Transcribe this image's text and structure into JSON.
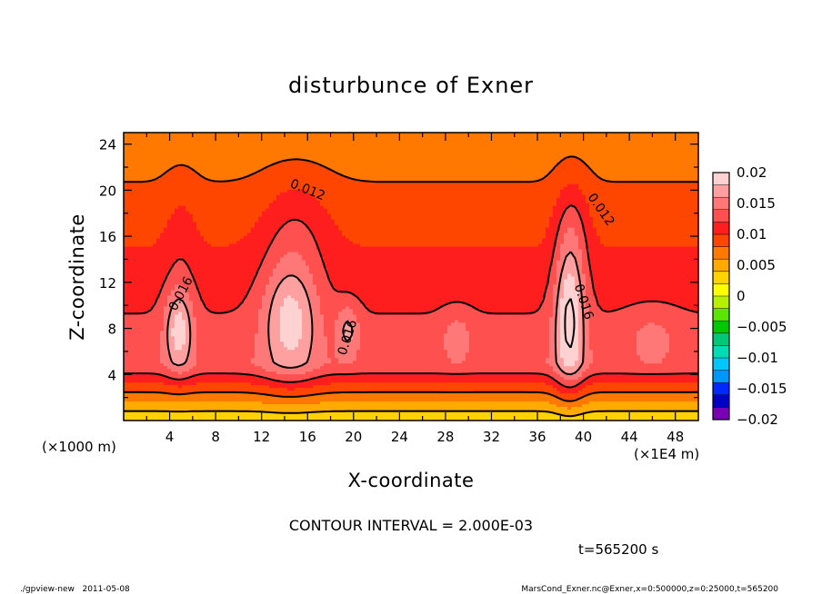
{
  "chart_data": {
    "type": "heatmap",
    "title": "disturbunce of Exner",
    "xlabel": "X-coordinate",
    "ylabel": "Z-coordinate",
    "x_unit_left": "(×1000 m)",
    "x_unit_right": "(×1E4 m)",
    "xlim": [
      0,
      50
    ],
    "ylim": [
      0,
      25
    ],
    "x_ticks": [
      4,
      8,
      12,
      16,
      20,
      24,
      28,
      32,
      36,
      40,
      44,
      48
    ],
    "y_ticks": [
      4,
      8,
      12,
      16,
      20,
      24
    ],
    "grid": false,
    "contour_interval_text": "CONTOUR INTERVAL = 2.000E-03",
    "time_text": "t=565200 s",
    "contour_labels": [
      {
        "text": "0.012",
        "x": 16,
        "y": 20,
        "angle": 22
      },
      {
        "text": "0.012",
        "x": 41.5,
        "y": 18.3,
        "angle": 55
      },
      {
        "text": "0.016",
        "x": 5,
        "y": 11,
        "angle": -62
      },
      {
        "text": "0.016",
        "x": 19.5,
        "y": 7.2,
        "angle": -72
      },
      {
        "text": "0.016",
        "x": 40,
        "y": 10.3,
        "angle": 72
      }
    ],
    "colorbar": {
      "ticks": [
        "0.02",
        "0.015",
        "0.01",
        "0.005",
        "0",
        "−0.005",
        "−0.01",
        "−0.015",
        "−0.02"
      ],
      "min": -0.02,
      "max": 0.02,
      "colors": [
        "#7a00b4",
        "#0000c8",
        "#0028ff",
        "#0096ff",
        "#00c8ff",
        "#00dcb4",
        "#00c878",
        "#00c800",
        "#5ae600",
        "#b4f000",
        "#ffff00",
        "#ffd200",
        "#ffaa00",
        "#ff7800",
        "#ff4600",
        "#ff1e1e",
        "#ff5050",
        "#ff7878",
        "#ffa0a0",
        "#ffd2d2"
      ]
    },
    "field": {
      "surface_level": 0.002,
      "bottom_gradient_level": 0.0125,
      "bottom_gradient_height_km": 4.3,
      "level_at_5km": 0.0135,
      "level_at_25km": 0.0065,
      "bumps": [
        {
          "x": 4.8,
          "z": 8,
          "sx": 1.2,
          "sz": 3.5,
          "amp": 0.0065
        },
        {
          "x": 14.5,
          "z": 9,
          "sx": 2.4,
          "sz": 5,
          "amp": 0.0068
        },
        {
          "x": 19.5,
          "z": 8,
          "sx": 1.0,
          "sz": 2.2,
          "amp": 0.004
        },
        {
          "x": 29,
          "z": 7.5,
          "sx": 1.3,
          "sz": 2,
          "amp": 0.0025
        },
        {
          "x": 38.8,
          "z": 9,
          "sx": 1.3,
          "sz": 6,
          "amp": 0.0085
        },
        {
          "x": 39,
          "z": 17,
          "sx": 1.5,
          "sz": 5,
          "amp": 0.003
        },
        {
          "x": 5,
          "z": 16,
          "sx": 1.5,
          "sz": 6,
          "amp": 0.0015
        },
        {
          "x": 15,
          "z": 17,
          "sx": 3,
          "sz": 5,
          "amp": 0.0025
        },
        {
          "x": 46,
          "z": 7.5,
          "sx": 2.2,
          "sz": 2.2,
          "amp": 0.002
        }
      ]
    }
  },
  "footer": {
    "left": "./gpview-new   2011-05-08",
    "right": "MarsCond_Exner.nc@Exner,x=0:500000,z=0:25000,t=565200"
  }
}
